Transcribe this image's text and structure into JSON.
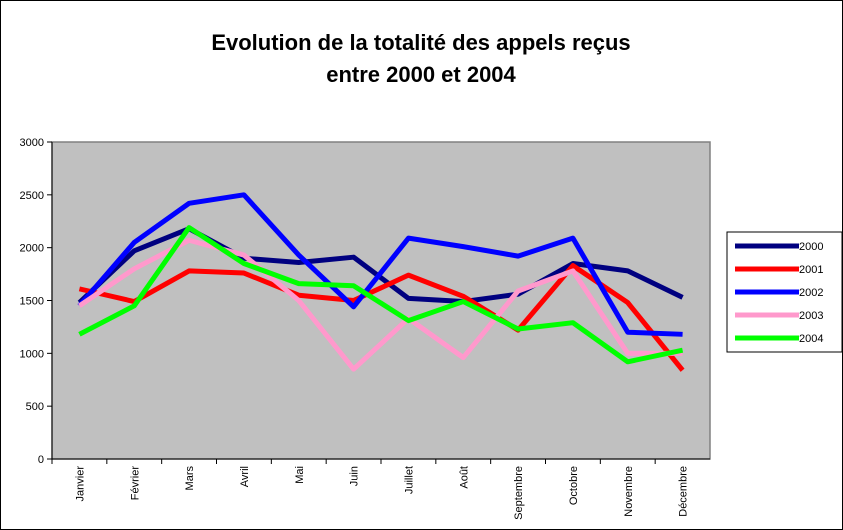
{
  "chart_data": {
    "type": "line",
    "title": [
      "Evolution de la totalité des appels reçus",
      "entre 2000 et 2004"
    ],
    "categories": [
      "Janvier",
      "Février",
      "Mars",
      "Avril",
      "Mai",
      "Juin",
      "Juillet",
      "Août",
      "Septembre",
      "Octobre",
      "Novembre",
      "Décembre"
    ],
    "series": [
      {
        "name": "2000",
        "color": "#000080",
        "values": [
          1480,
          1970,
          2180,
          1900,
          1860,
          1910,
          1520,
          1490,
          1560,
          1850,
          1780,
          1530
        ]
      },
      {
        "name": "2001",
        "color": "#ff0000",
        "values": [
          1610,
          1490,
          1780,
          1760,
          1550,
          1500,
          1740,
          1540,
          1220,
          1830,
          1480,
          840
        ]
      },
      {
        "name": "2002",
        "color": "#0000ff",
        "values": [
          1450,
          2050,
          2420,
          2500,
          1930,
          1440,
          2090,
          2010,
          1920,
          2090,
          1200,
          1180
        ]
      },
      {
        "name": "2003",
        "color": "#ff99cc",
        "values": [
          1450,
          1800,
          2070,
          1930,
          1500,
          850,
          1330,
          960,
          1590,
          1780,
          1000,
          1000
        ]
      },
      {
        "name": "2004",
        "color": "#00ff00",
        "values": [
          1180,
          1450,
          2190,
          1850,
          1660,
          1640,
          1310,
          1490,
          1230,
          1290,
          920,
          1030
        ]
      }
    ],
    "ylim": [
      0,
      3000
    ],
    "yticks": [
      0,
      500,
      1000,
      1500,
      2000,
      2500,
      3000
    ],
    "legend": "right",
    "plot_background": "#c0c0c0"
  }
}
